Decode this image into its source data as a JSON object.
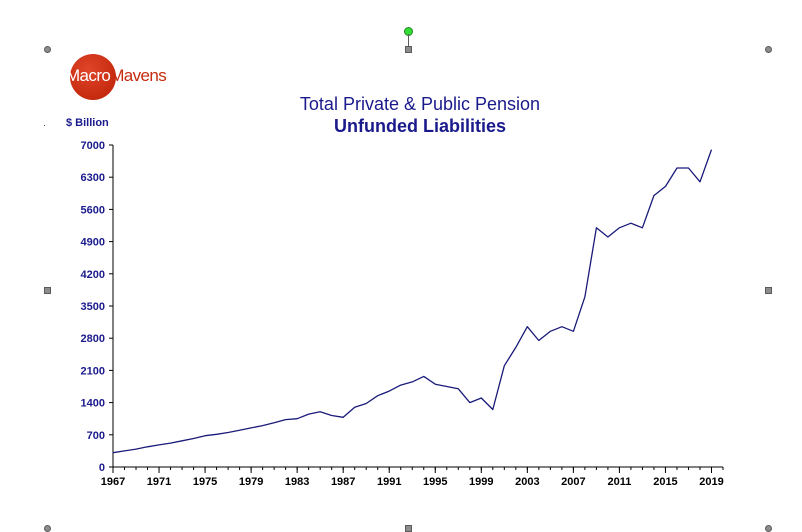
{
  "logo": {
    "part1": "Macro",
    "part2": "Mavens"
  },
  "chart_data": {
    "type": "line",
    "title": "Total Private & Public Pension",
    "subtitle": "Unfunded Liabilities",
    "ylabel": "$ Billion",
    "xlabel": "",
    "xlim": [
      1967,
      2020
    ],
    "ylim": [
      0,
      7000
    ],
    "x_ticks": [
      "1967",
      "1971",
      "1975",
      "1979",
      "1983",
      "1987",
      "1991",
      "1995",
      "1999",
      "2003",
      "2007",
      "2011",
      "2015",
      "2019"
    ],
    "y_ticks": [
      "0",
      "700",
      "1400",
      "2100",
      "2800",
      "3500",
      "4200",
      "4900",
      "5600",
      "6300",
      "7000"
    ],
    "grid": false,
    "color": "#1a1a7a",
    "series": [
      {
        "x": [
          1967,
          1968,
          1969,
          1970,
          1971,
          1972,
          1973,
          1974,
          1975,
          1976,
          1977,
          1978,
          1979,
          1980,
          1981,
          1982,
          1983,
          1984,
          1985,
          1986,
          1987,
          1988,
          1989,
          1990,
          1991,
          1992,
          1993,
          1994,
          1995,
          1996,
          1997,
          1998,
          1999,
          2000,
          2001,
          2002,
          2003,
          2004,
          2005,
          2006,
          2007,
          2008,
          2009,
          2010,
          2011,
          2012,
          2013,
          2014,
          2015,
          2016,
          2017,
          2018,
          2019
        ],
        "y": [
          310,
          350,
          390,
          440,
          480,
          520,
          570,
          620,
          680,
          710,
          750,
          800,
          850,
          900,
          960,
          1030,
          1050,
          1150,
          1200,
          1120,
          1080,
          1300,
          1380,
          1550,
          1650,
          1780,
          1850,
          1970,
          1800,
          1750,
          1700,
          1400,
          1500,
          1250,
          2200,
          2600,
          3050,
          2750,
          2950,
          3050,
          2950,
          3700,
          5200,
          5000,
          5200,
          5300,
          5200,
          5900,
          6100,
          6500,
          6500,
          6200,
          6900
        ]
      }
    ]
  }
}
